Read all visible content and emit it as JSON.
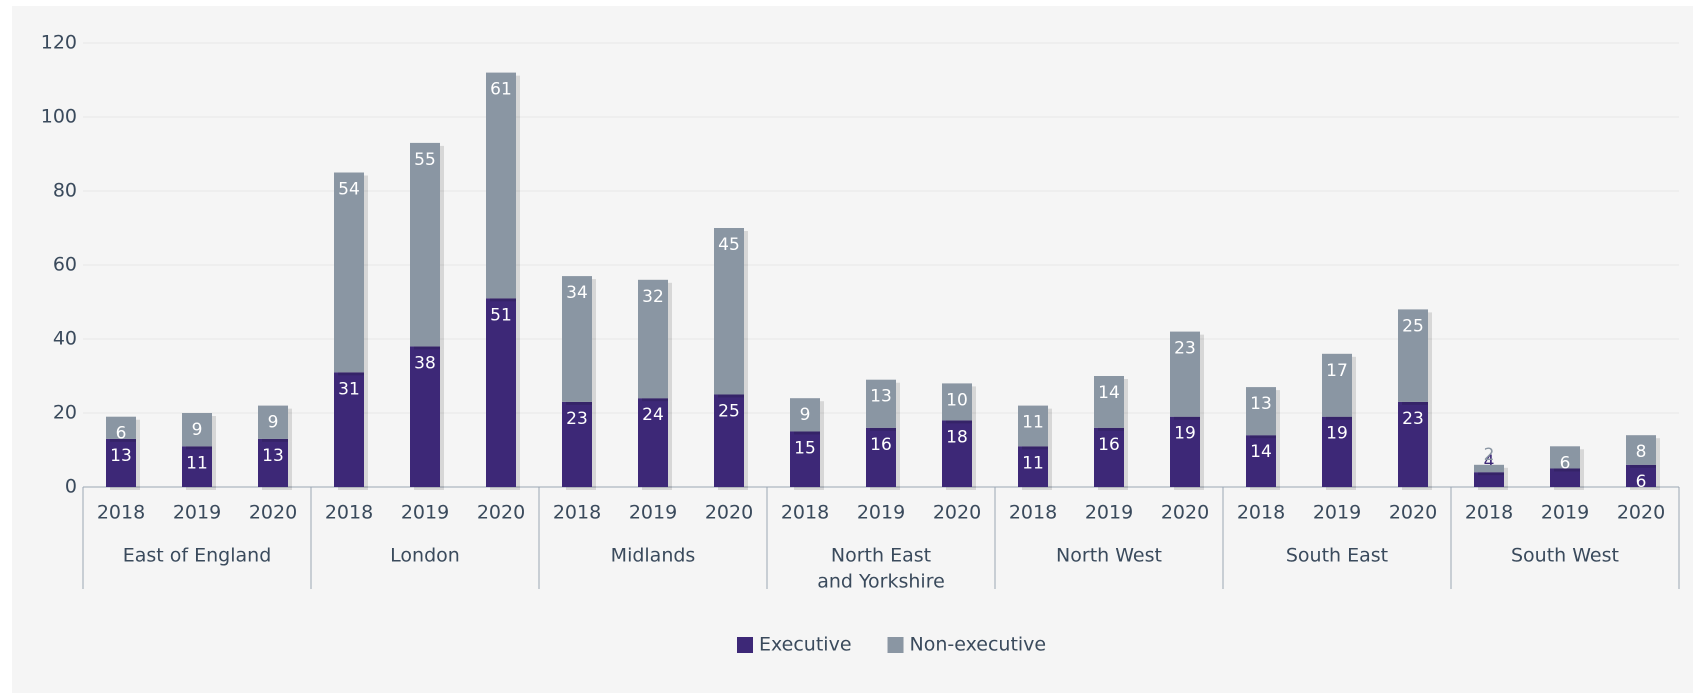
{
  "chart_data": {
    "type": "stacked_bar",
    "categories": [
      "2018",
      "2019",
      "2020",
      "2018",
      "2019",
      "2020",
      "2018",
      "2019",
      "2020",
      "2018",
      "2019",
      "2020",
      "2018",
      "2019",
      "2020",
      "2018",
      "2019",
      "2020",
      "2018",
      "2019",
      "2020"
    ],
    "groups": [
      "East of England",
      "London",
      "Midlands",
      [
        "North East",
        "and Yorkshire"
      ],
      "North West",
      "South East",
      "South West"
    ],
    "series": [
      {
        "name": "Executive",
        "color": "#3d2877",
        "values": [
          13,
          11,
          13,
          31,
          38,
          51,
          23,
          24,
          25,
          15,
          16,
          18,
          11,
          16,
          19,
          14,
          19,
          23,
          4,
          5,
          6
        ]
      },
      {
        "name": "Non-executive",
        "color": "#8a96a3",
        "values": [
          6,
          9,
          9,
          54,
          55,
          61,
          34,
          32,
          45,
          9,
          13,
          10,
          11,
          14,
          23,
          13,
          17,
          25,
          2,
          6,
          8
        ]
      }
    ],
    "ylim": [
      0,
      120
    ],
    "yticks": [
      0,
      20,
      40,
      60,
      80,
      100,
      120
    ],
    "grid": true,
    "legend": "bottom"
  }
}
